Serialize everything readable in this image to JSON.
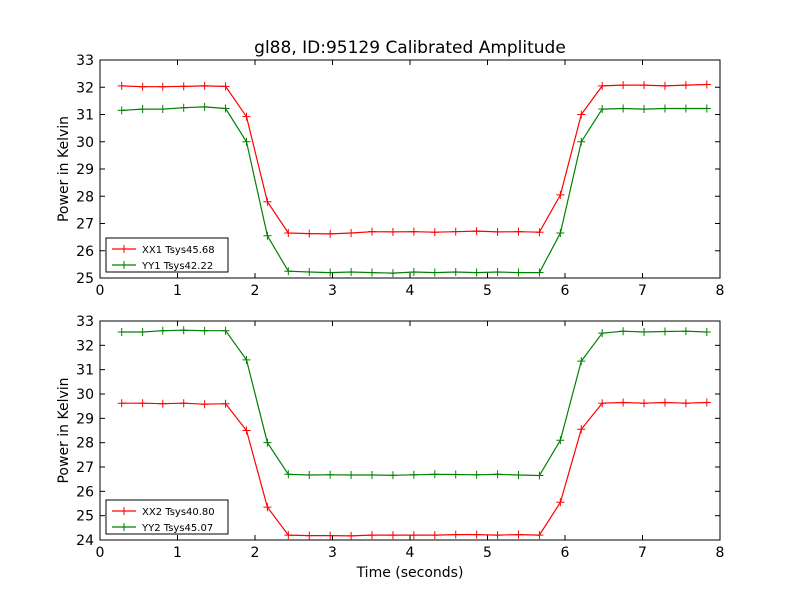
{
  "figure_title": "gl88, ID:95129 Calibrated Amplitude",
  "chart_data": [
    {
      "type": "line",
      "title": "gl88, ID:95129 Calibrated Amplitude",
      "xlabel": "",
      "ylabel": "Power in Kelvin",
      "xlim": [
        0,
        8
      ],
      "ylim": [
        25,
        33
      ],
      "xticks": [
        "0",
        "1",
        "2",
        "3",
        "4",
        "5",
        "6",
        "7",
        "8"
      ],
      "yticks": [
        "25",
        "26",
        "27",
        "28",
        "29",
        "30",
        "31",
        "32",
        "33"
      ],
      "grid": false,
      "legend_placement": "lower-left",
      "x": [
        0.28,
        0.55,
        0.81,
        1.08,
        1.35,
        1.62,
        1.89,
        2.16,
        2.43,
        2.7,
        2.97,
        3.24,
        3.51,
        3.78,
        4.05,
        4.32,
        4.59,
        4.86,
        5.13,
        5.4,
        5.67,
        5.94,
        6.21,
        6.48,
        6.75,
        7.02,
        7.29,
        7.56,
        7.83
      ],
      "series": [
        {
          "name": "XX1 Tsys45.68",
          "color": "#ff0000",
          "values": [
            32.05,
            32.02,
            32.02,
            32.03,
            32.05,
            32.03,
            30.92,
            27.8,
            26.65,
            26.63,
            26.62,
            26.65,
            26.7,
            26.69,
            26.7,
            26.68,
            26.7,
            26.72,
            26.69,
            26.7,
            26.68,
            28.05,
            31.0,
            32.05,
            32.08,
            32.08,
            32.05,
            32.08,
            32.1
          ]
        },
        {
          "name": "YY1 Tsys42.22",
          "color": "#008000",
          "values": [
            31.15,
            31.2,
            31.2,
            31.25,
            31.28,
            31.22,
            30.0,
            26.55,
            25.25,
            25.22,
            25.2,
            25.22,
            25.2,
            25.18,
            25.22,
            25.2,
            25.22,
            25.2,
            25.22,
            25.2,
            25.2,
            26.65,
            30.0,
            31.2,
            31.22,
            31.2,
            31.22,
            31.22,
            31.22
          ]
        }
      ]
    },
    {
      "type": "line",
      "title": "",
      "xlabel": "Time (seconds)",
      "ylabel": "Power in Kelvin",
      "xlim": [
        0,
        8
      ],
      "ylim": [
        24,
        33
      ],
      "xticks": [
        "0",
        "1",
        "2",
        "3",
        "4",
        "5",
        "6",
        "7",
        "8"
      ],
      "yticks": [
        "24",
        "25",
        "26",
        "27",
        "28",
        "29",
        "30",
        "31",
        "32",
        "33"
      ],
      "grid": false,
      "legend_placement": "lower-left",
      "x": [
        0.28,
        0.55,
        0.81,
        1.08,
        1.35,
        1.62,
        1.89,
        2.16,
        2.43,
        2.7,
        2.97,
        3.24,
        3.51,
        3.78,
        4.05,
        4.32,
        4.59,
        4.86,
        5.13,
        5.4,
        5.67,
        5.94,
        6.21,
        6.48,
        6.75,
        7.02,
        7.29,
        7.56,
        7.83
      ],
      "series": [
        {
          "name": "XX2 Tsys40.80",
          "color": "#ff0000",
          "values": [
            29.62,
            29.62,
            29.6,
            29.62,
            29.58,
            29.6,
            28.5,
            25.35,
            24.2,
            24.18,
            24.18,
            24.17,
            24.2,
            24.2,
            24.2,
            24.2,
            24.22,
            24.22,
            24.2,
            24.22,
            24.2,
            25.55,
            28.55,
            29.62,
            29.65,
            29.62,
            29.65,
            29.62,
            29.65
          ]
        },
        {
          "name": "YY2 Tsys45.07",
          "color": "#008000",
          "values": [
            32.55,
            32.55,
            32.6,
            32.62,
            32.6,
            32.6,
            31.4,
            28.0,
            26.7,
            26.67,
            26.68,
            26.67,
            26.67,
            26.66,
            26.68,
            26.7,
            26.69,
            26.68,
            26.7,
            26.67,
            26.65,
            28.1,
            31.35,
            32.5,
            32.58,
            32.55,
            32.57,
            32.58,
            32.55
          ]
        }
      ]
    }
  ]
}
